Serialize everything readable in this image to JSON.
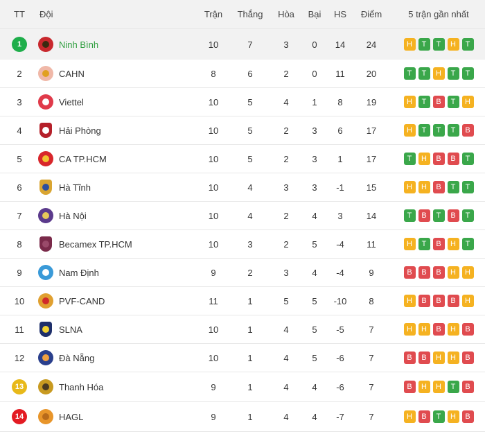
{
  "colors": {
    "win": "#3aa74a",
    "draw": "#f5b221",
    "loss": "#e04b4f",
    "rank_top": "#1fae4b",
    "rank_playoff": "#e8b91a",
    "rank_relegation": "#e31b23",
    "leader_text": "#2e9e3e",
    "header_bg": "#f2f2f2"
  },
  "header": {
    "tt": "TT",
    "team": "Đội",
    "played": "Trận",
    "won": "Thắng",
    "drawn": "Hòa",
    "lost": "Bại",
    "gd": "HS",
    "points": "Điểm",
    "form": "5 trận gần nhất"
  },
  "teams": [
    {
      "rank": "1",
      "name": "Ninh Bình",
      "played": "10",
      "won": "7",
      "drawn": "3",
      "lost": "0",
      "gd": "14",
      "points": "24",
      "form": [
        "H",
        "T",
        "T",
        "H",
        "T"
      ],
      "logo": "ninh-binh-logo",
      "logo_color": "#c8282d",
      "logo_inner": "#3a2a10"
    },
    {
      "rank": "2",
      "name": "CAHN",
      "played": "8",
      "won": "6",
      "drawn": "2",
      "lost": "0",
      "gd": "11",
      "points": "20",
      "form": [
        "T",
        "T",
        "H",
        "T",
        "T"
      ],
      "logo": "cahn-logo",
      "logo_color": "#f0b8a8",
      "logo_inner": "#e0a020"
    },
    {
      "rank": "3",
      "name": "Viettel",
      "played": "10",
      "won": "5",
      "drawn": "4",
      "lost": "1",
      "gd": "8",
      "points": "19",
      "form": [
        "H",
        "T",
        "B",
        "T",
        "H"
      ],
      "logo": "viettel-logo",
      "logo_color": "#e03a4a",
      "logo_inner": "#ffffff"
    },
    {
      "rank": "4",
      "name": "Hải Phòng",
      "played": "10",
      "won": "5",
      "drawn": "2",
      "lost": "3",
      "gd": "6",
      "points": "17",
      "form": [
        "H",
        "T",
        "T",
        "T",
        "B"
      ],
      "logo": "hai-phong-logo",
      "logo_color": "#b5202a",
      "logo_inner": "#ffffff"
    },
    {
      "rank": "5",
      "name": "CA TP.HCM",
      "played": "10",
      "won": "5",
      "drawn": "2",
      "lost": "3",
      "gd": "1",
      "points": "17",
      "form": [
        "T",
        "H",
        "B",
        "B",
        "T"
      ],
      "logo": "ca-tphcm-logo",
      "logo_color": "#d8262b",
      "logo_inner": "#f2c230"
    },
    {
      "rank": "6",
      "name": "Hà Tĩnh",
      "played": "10",
      "won": "4",
      "drawn": "3",
      "lost": "3",
      "gd": "-1",
      "points": "15",
      "form": [
        "H",
        "H",
        "B",
        "T",
        "T"
      ],
      "logo": "ha-tinh-logo",
      "logo_color": "#d9a531",
      "logo_inner": "#2d4f9e"
    },
    {
      "rank": "7",
      "name": "Hà Nội",
      "played": "10",
      "won": "4",
      "drawn": "2",
      "lost": "4",
      "gd": "3",
      "points": "14",
      "form": [
        "T",
        "B",
        "T",
        "B",
        "T"
      ],
      "logo": "ha-noi-logo",
      "logo_color": "#5b3a8c",
      "logo_inner": "#e6c85a"
    },
    {
      "rank": "8",
      "name": "Becamex TP.HCM",
      "played": "10",
      "won": "3",
      "drawn": "2",
      "lost": "5",
      "gd": "-4",
      "points": "11",
      "form": [
        "H",
        "T",
        "B",
        "H",
        "T"
      ],
      "logo": "becamex-logo",
      "logo_color": "#7a2a4a",
      "logo_inner": "#9a4a6a"
    },
    {
      "rank": "9",
      "name": "Nam Định",
      "played": "9",
      "won": "2",
      "drawn": "3",
      "lost": "4",
      "gd": "-4",
      "points": "9",
      "form": [
        "B",
        "B",
        "B",
        "H",
        "H"
      ],
      "logo": "nam-dinh-logo",
      "logo_color": "#3a9ad8",
      "logo_inner": "#ffffff"
    },
    {
      "rank": "10",
      "name": "PVF-CAND",
      "played": "11",
      "won": "1",
      "drawn": "5",
      "lost": "5",
      "gd": "-10",
      "points": "8",
      "form": [
        "H",
        "B",
        "B",
        "B",
        "H"
      ],
      "logo": "pvf-cand-logo",
      "logo_color": "#e0a030",
      "logo_inner": "#d02a2a"
    },
    {
      "rank": "11",
      "name": "SLNA",
      "played": "10",
      "won": "1",
      "drawn": "4",
      "lost": "5",
      "gd": "-5",
      "points": "7",
      "form": [
        "H",
        "H",
        "B",
        "H",
        "B"
      ],
      "logo": "slna-logo",
      "logo_color": "#1e2f6a",
      "logo_inner": "#f2d230"
    },
    {
      "rank": "12",
      "name": "Đà Nẵng",
      "played": "10",
      "won": "1",
      "drawn": "4",
      "lost": "5",
      "gd": "-6",
      "points": "7",
      "form": [
        "B",
        "B",
        "H",
        "H",
        "B"
      ],
      "logo": "da-nang-logo",
      "logo_color": "#2a3f8c",
      "logo_inner": "#f0a040"
    },
    {
      "rank": "13",
      "name": "Thanh Hóa",
      "played": "9",
      "won": "1",
      "drawn": "4",
      "lost": "4",
      "gd": "-6",
      "points": "7",
      "form": [
        "B",
        "H",
        "H",
        "T",
        "B"
      ],
      "logo": "thanh-hoa-logo",
      "logo_color": "#c89a20",
      "logo_inner": "#4a3a20"
    },
    {
      "rank": "14",
      "name": "HAGL",
      "played": "9",
      "won": "1",
      "drawn": "4",
      "lost": "4",
      "gd": "-7",
      "points": "7",
      "form": [
        "H",
        "B",
        "T",
        "H",
        "B"
      ],
      "logo": "hagl-logo",
      "logo_color": "#e8952a",
      "logo_inner": "#b86a1a"
    }
  ]
}
